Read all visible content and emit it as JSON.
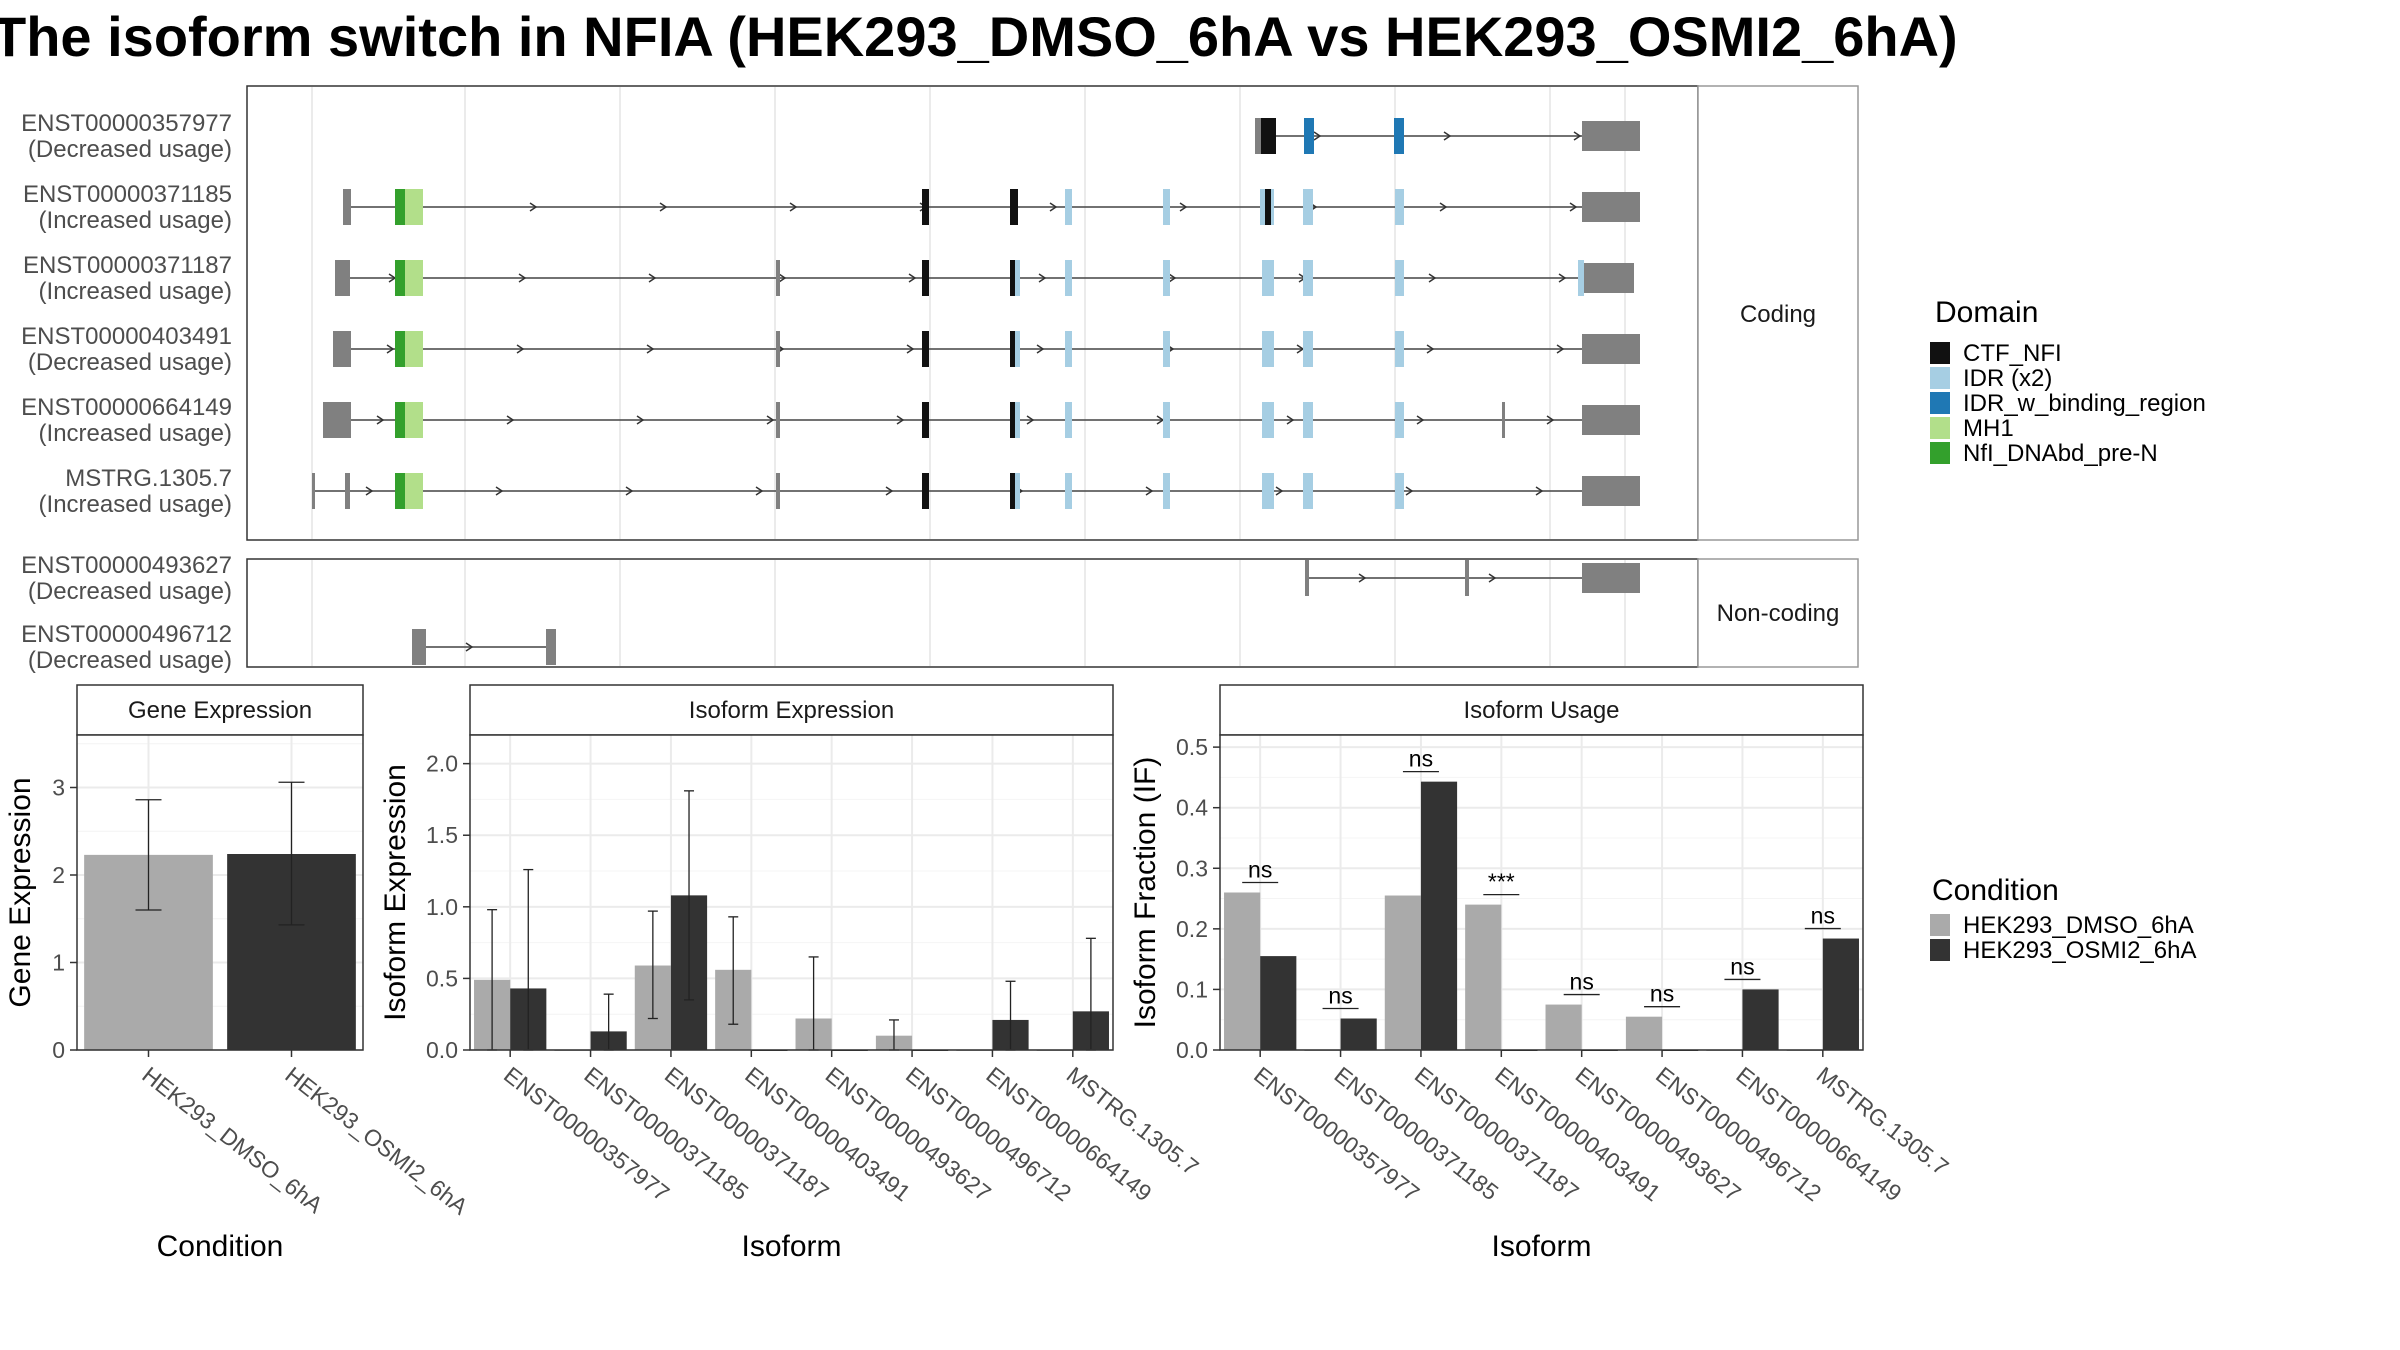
{
  "title": "The isoform switch in NFIA (HEK293_DMSO_6hA vs HEK293_OSMI2_6hA)",
  "structure": {
    "coding_facet": "Coding",
    "noncoding_facet": "Non-coding",
    "transcripts": [
      {
        "id": "ENST00000357977",
        "usage": "(Decreased usage)",
        "group": "coding"
      },
      {
        "id": "ENST00000371185",
        "usage": "(Increased usage)",
        "group": "coding"
      },
      {
        "id": "ENST00000371187",
        "usage": "(Increased usage)",
        "group": "coding"
      },
      {
        "id": "ENST00000403491",
        "usage": "(Decreased usage)",
        "group": "coding"
      },
      {
        "id": "ENST00000664149",
        "usage": "(Increased usage)",
        "group": "coding"
      },
      {
        "id": "MSTRG.1305.7",
        "usage": "(Increased usage)",
        "group": "coding"
      },
      {
        "id": "ENST00000493627",
        "usage": "(Decreased usage)",
        "group": "noncoding"
      },
      {
        "id": "ENST00000496712",
        "usage": "(Decreased usage)",
        "group": "noncoding"
      }
    ]
  },
  "legends": {
    "domain_title": "Domain",
    "domains": [
      {
        "label": "CTF_NFI",
        "color": "#111111"
      },
      {
        "label": "IDR (x2)",
        "color": "#a6cee3"
      },
      {
        "label": "IDR_w_binding_region",
        "color": "#1f78b4"
      },
      {
        "label": "MH1",
        "color": "#b2df8a"
      },
      {
        "label": "NfI_DNAbd_pre-N",
        "color": "#33a02c"
      }
    ],
    "condition_title": "Condition",
    "conditions": [
      {
        "label": "HEK293_DMSO_6hA",
        "color": "#aaaaaa"
      },
      {
        "label": "HEK293_OSMI2_6hA",
        "color": "#333333"
      }
    ]
  },
  "chart_data": [
    {
      "type": "bar",
      "title": "Gene Expression",
      "xlabel": "Condition",
      "ylabel": "Gene Expression",
      "ylim": [
        0,
        3.6
      ],
      "yticks": [
        0,
        1,
        2,
        3
      ],
      "categories": [
        "HEK293_DMSO_6hA",
        "HEK293_OSMI2_6hA"
      ],
      "values": [
        2.23,
        2.24
      ],
      "error_low": [
        1.6,
        1.43
      ],
      "error_high": [
        2.86,
        3.06
      ]
    },
    {
      "type": "bar",
      "title": "Isoform Expression",
      "xlabel": "Isoform",
      "ylabel": "Isoform Expression",
      "ylim": [
        0,
        2.2
      ],
      "yticks": [
        "0.0",
        "0.5",
        "1.0",
        "1.5",
        "2.0"
      ],
      "categories": [
        "ENST00000357977",
        "ENST00000371185",
        "ENST00000371187",
        "ENST00000403491",
        "ENST00000493627",
        "ENST00000496712",
        "ENST00000664149",
        "MSTRG.1305.7"
      ],
      "series": [
        {
          "name": "HEK293_DMSO_6hA",
          "values": [
            0.49,
            0.0,
            0.59,
            0.56,
            0.22,
            0.1,
            0.0,
            0.0
          ],
          "error_low": [
            0.0,
            null,
            0.22,
            0.18,
            0.0,
            0.0,
            null,
            null
          ],
          "error_high": [
            0.98,
            null,
            0.97,
            0.93,
            0.65,
            0.21,
            null,
            null
          ]
        },
        {
          "name": "HEK293_OSMI2_6hA",
          "values": [
            0.43,
            0.13,
            1.08,
            0.0,
            0.0,
            0.0,
            0.21,
            0.27
          ],
          "error_low": [
            0.0,
            0.0,
            0.35,
            null,
            null,
            null,
            0.0,
            0.0
          ],
          "error_high": [
            1.26,
            0.39,
            1.81,
            null,
            null,
            null,
            0.48,
            0.78
          ]
        }
      ]
    },
    {
      "type": "bar",
      "title": "Isoform Usage",
      "xlabel": "Isoform",
      "ylabel": "Isoform Fraction (IF)",
      "ylim": [
        0,
        0.52
      ],
      "yticks": [
        "0.0",
        "0.1",
        "0.2",
        "0.3",
        "0.4",
        "0.5"
      ],
      "categories": [
        "ENST00000357977",
        "ENST00000371185",
        "ENST00000371187",
        "ENST00000403491",
        "ENST00000493627",
        "ENST00000496712",
        "ENST00000664149",
        "MSTRG.1305.7"
      ],
      "series": [
        {
          "name": "HEK293_DMSO_6hA",
          "values": [
            0.26,
            0.0,
            0.255,
            0.24,
            0.075,
            0.055,
            0.0,
            0.0
          ]
        },
        {
          "name": "HEK293_OSMI2_6hA",
          "values": [
            0.155,
            0.052,
            0.443,
            0.0,
            0.0,
            0.0,
            0.1,
            0.184
          ]
        }
      ],
      "significance": [
        "ns",
        "ns",
        "ns",
        "***",
        "ns",
        "ns",
        "ns",
        "ns"
      ]
    }
  ]
}
